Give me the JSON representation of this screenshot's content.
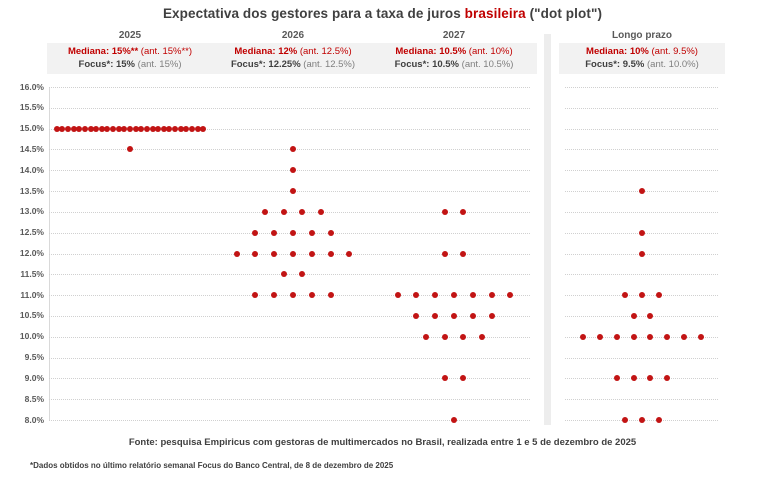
{
  "title": {
    "prefix": "Expectativa dos gestores para a taxa de juros ",
    "highlight": "brasileira",
    "suffix": " (\"dot plot\")"
  },
  "columns": [
    {
      "label": "2025",
      "mediana": {
        "bold": "Mediana: 15%**",
        "ant": " (ant. 15%**)"
      },
      "focus": {
        "bold": "Focus*: 15%",
        "ant": " (ant. 15%)"
      }
    },
    {
      "label": "2026",
      "mediana": {
        "bold": "Mediana: 12%",
        "ant": " (ant. 12.5%)"
      },
      "focus": {
        "bold": "Focus*: 12.25%",
        "ant": " (ant. 12.5%)"
      }
    },
    {
      "label": "2027",
      "mediana": {
        "bold": "Mediana: 10.5%",
        "ant": " (ant. 10%)"
      },
      "focus": {
        "bold": "Focus*: 10.5%",
        "ant": " (ant. 10.5%)"
      }
    },
    {
      "label": "Longo prazo",
      "mediana": {
        "bold": "Mediana: 10%",
        "ant": " (ant. 9.5%)"
      },
      "focus": {
        "bold": "Focus*: 9.5%",
        "ant": " (ant. 10.0%)"
      }
    }
  ],
  "chart_data": {
    "type": "scatter",
    "subtype": "dot-plot",
    "title": "Expectativa dos gestores para a taxa de juros brasileira (\"dot plot\")",
    "ylim": [
      8.0,
      16.0
    ],
    "y_tick_step": 0.5,
    "y_tick_labels": [
      "16.0%",
      "15.5%",
      "15.0%",
      "14.5%",
      "14.0%",
      "13.5%",
      "13.0%",
      "12.5%",
      "12.0%",
      "11.5%",
      "11.0%",
      "10.5%",
      "10.0%",
      "9.5%",
      "9.0%",
      "8.5%",
      "8.0%"
    ],
    "grid": "dotted-horizontal",
    "legend": "none",
    "series": [
      {
        "name": "2025",
        "dots": [
          {
            "rate": 15.0,
            "count": 27
          },
          {
            "rate": 14.5,
            "count": 1
          }
        ]
      },
      {
        "name": "2026",
        "dots": [
          {
            "rate": 14.5,
            "count": 1
          },
          {
            "rate": 14.0,
            "count": 1
          },
          {
            "rate": 13.5,
            "count": 1
          },
          {
            "rate": 13.0,
            "count": 4
          },
          {
            "rate": 12.5,
            "count": 5
          },
          {
            "rate": 12.0,
            "count": 7
          },
          {
            "rate": 11.5,
            "count": 2
          },
          {
            "rate": 11.0,
            "count": 5
          }
        ]
      },
      {
        "name": "2027",
        "dots": [
          {
            "rate": 13.0,
            "count": 2
          },
          {
            "rate": 12.0,
            "count": 2
          },
          {
            "rate": 11.0,
            "count": 7
          },
          {
            "rate": 10.5,
            "count": 5
          },
          {
            "rate": 10.0,
            "count": 4
          },
          {
            "rate": 9.0,
            "count": 2
          },
          {
            "rate": 8.0,
            "count": 1
          }
        ]
      },
      {
        "name": "Longo prazo",
        "dots": [
          {
            "rate": 13.5,
            "count": 1
          },
          {
            "rate": 12.5,
            "count": 1
          },
          {
            "rate": 12.0,
            "count": 1
          },
          {
            "rate": 11.0,
            "count": 3
          },
          {
            "rate": 10.5,
            "count": 2
          },
          {
            "rate": 10.0,
            "count": 8
          },
          {
            "rate": 9.0,
            "count": 4
          },
          {
            "rate": 8.0,
            "count": 3
          }
        ]
      }
    ]
  },
  "footer": {
    "fonte": "Fonte: pesquisa Empiricus com gestoras de multimercados no Brasil, realizada entre 1 e 5 de dezembro de 2025",
    "footnote": "*Dados obtidos no último relatório semanal Focus do Banco Central, de 8 de dezembro de 2025"
  },
  "colors": {
    "accent_red": "#c00000",
    "dot_red": "#c21414",
    "text_dark": "#404040",
    "text_gray": "#7f7f7f",
    "axis_text": "#595959",
    "gridline": "#d0d0d0",
    "header_bg": "#f2f2f2",
    "divider": "#ededed"
  }
}
